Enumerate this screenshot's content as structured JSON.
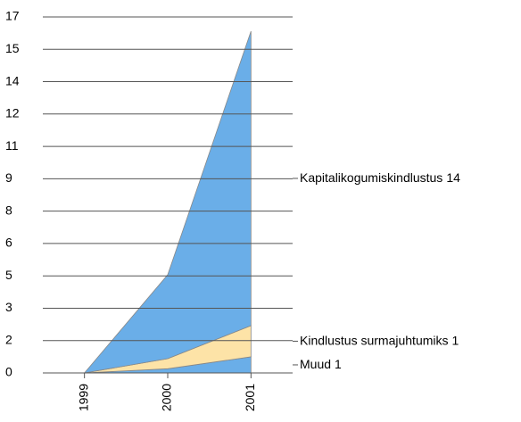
{
  "chart_data": {
    "type": "stacked_area",
    "categories": [
      "1999",
      "2000",
      "2001"
    ],
    "series": [
      {
        "name": "Muud",
        "color": "#6aaee8",
        "values": [
          0,
          0.2,
          0.77
        ],
        "value_labels": [
          null,
          null,
          "1"
        ]
      },
      {
        "name": "Kindlustus surmajuhtumiks",
        "color": "#fde3a7",
        "values": [
          0,
          0.48,
          1.49
        ],
        "value_labels": [
          null,
          null,
          "1"
        ]
      },
      {
        "name": "Kapitalikogumiskindlustus",
        "color": "#6aaee8",
        "values": [
          0,
          4.01,
          14.06
        ],
        "value_labels": [
          null,
          null,
          "14"
        ]
      }
    ],
    "ylim": [
      0,
      17
    ],
    "yticks": [
      0,
      {
        "value": 1.545,
        "label": "2"
      },
      {
        "value": 3.091,
        "label": "3"
      },
      {
        "value": 4.636,
        "label": "5"
      },
      {
        "value": 6.182,
        "label": "6"
      },
      {
        "value": 7.727,
        "label": "8"
      },
      {
        "value": 9.273,
        "label": "9"
      },
      {
        "value": 10.818,
        "label": "11"
      },
      {
        "value": 12.364,
        "label": "12"
      },
      {
        "value": 13.909,
        "label": "14"
      },
      {
        "value": 15.455,
        "label": "15"
      },
      17
    ],
    "grid": true
  }
}
